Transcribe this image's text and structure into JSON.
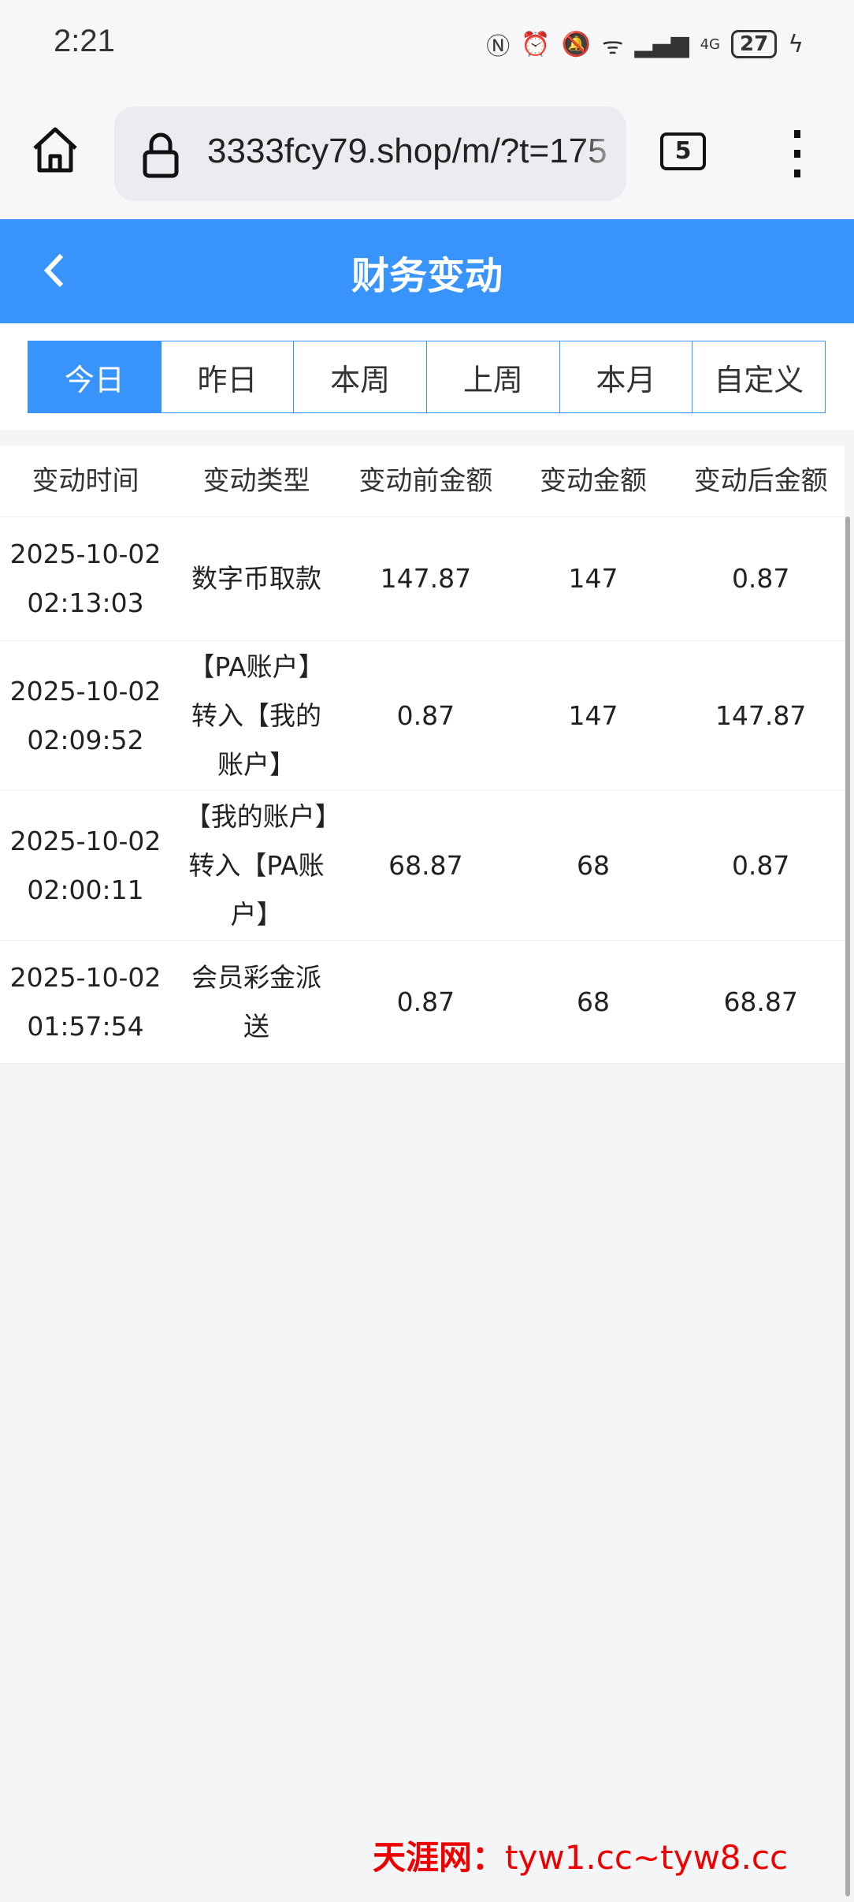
{
  "status_bar": {
    "time": "2:21",
    "battery": "27",
    "network": "4G",
    "icons": [
      "nfc-icon",
      "alarm-icon",
      "mute-icon",
      "wifi-icon",
      "signal-icon",
      "signal-4g-icon",
      "battery-icon",
      "charging-icon"
    ]
  },
  "browser": {
    "url": "3333fcy79.shop/m/?t=175",
    "tab_count": "5"
  },
  "header": {
    "title": "财务变动"
  },
  "filters": {
    "items": [
      "今日",
      "昨日",
      "本周",
      "上周",
      "本月",
      "自定义"
    ],
    "active": 0
  },
  "table": {
    "columns": [
      "变动时间",
      "变动类型",
      "变动前金额",
      "变动金额",
      "变动后金额"
    ],
    "rows": [
      {
        "date": "2025-10-02",
        "time": "02:13:03",
        "type": "数字币取款",
        "before": "147.87",
        "amount": "147",
        "after": "0.87"
      },
      {
        "date": "2025-10-02",
        "time": "02:09:52",
        "type": "【PA账户】转入【我的账户】",
        "before": "0.87",
        "amount": "147",
        "after": "147.87"
      },
      {
        "date": "2025-10-02",
        "time": "02:00:11",
        "type": "【我的账户】转入【PA账户】",
        "before": "68.87",
        "amount": "68",
        "after": "0.87"
      },
      {
        "date": "2025-10-02",
        "time": "01:57:54",
        "type": "会员彩金派送",
        "before": "0.87",
        "amount": "68",
        "after": "68.87"
      }
    ]
  },
  "watermark": {
    "name": "天涯网：",
    "urls": "tyw1.cc~tyw8.cc"
  },
  "colors": {
    "primary": "#3894fb",
    "watermark": "#e00000"
  }
}
